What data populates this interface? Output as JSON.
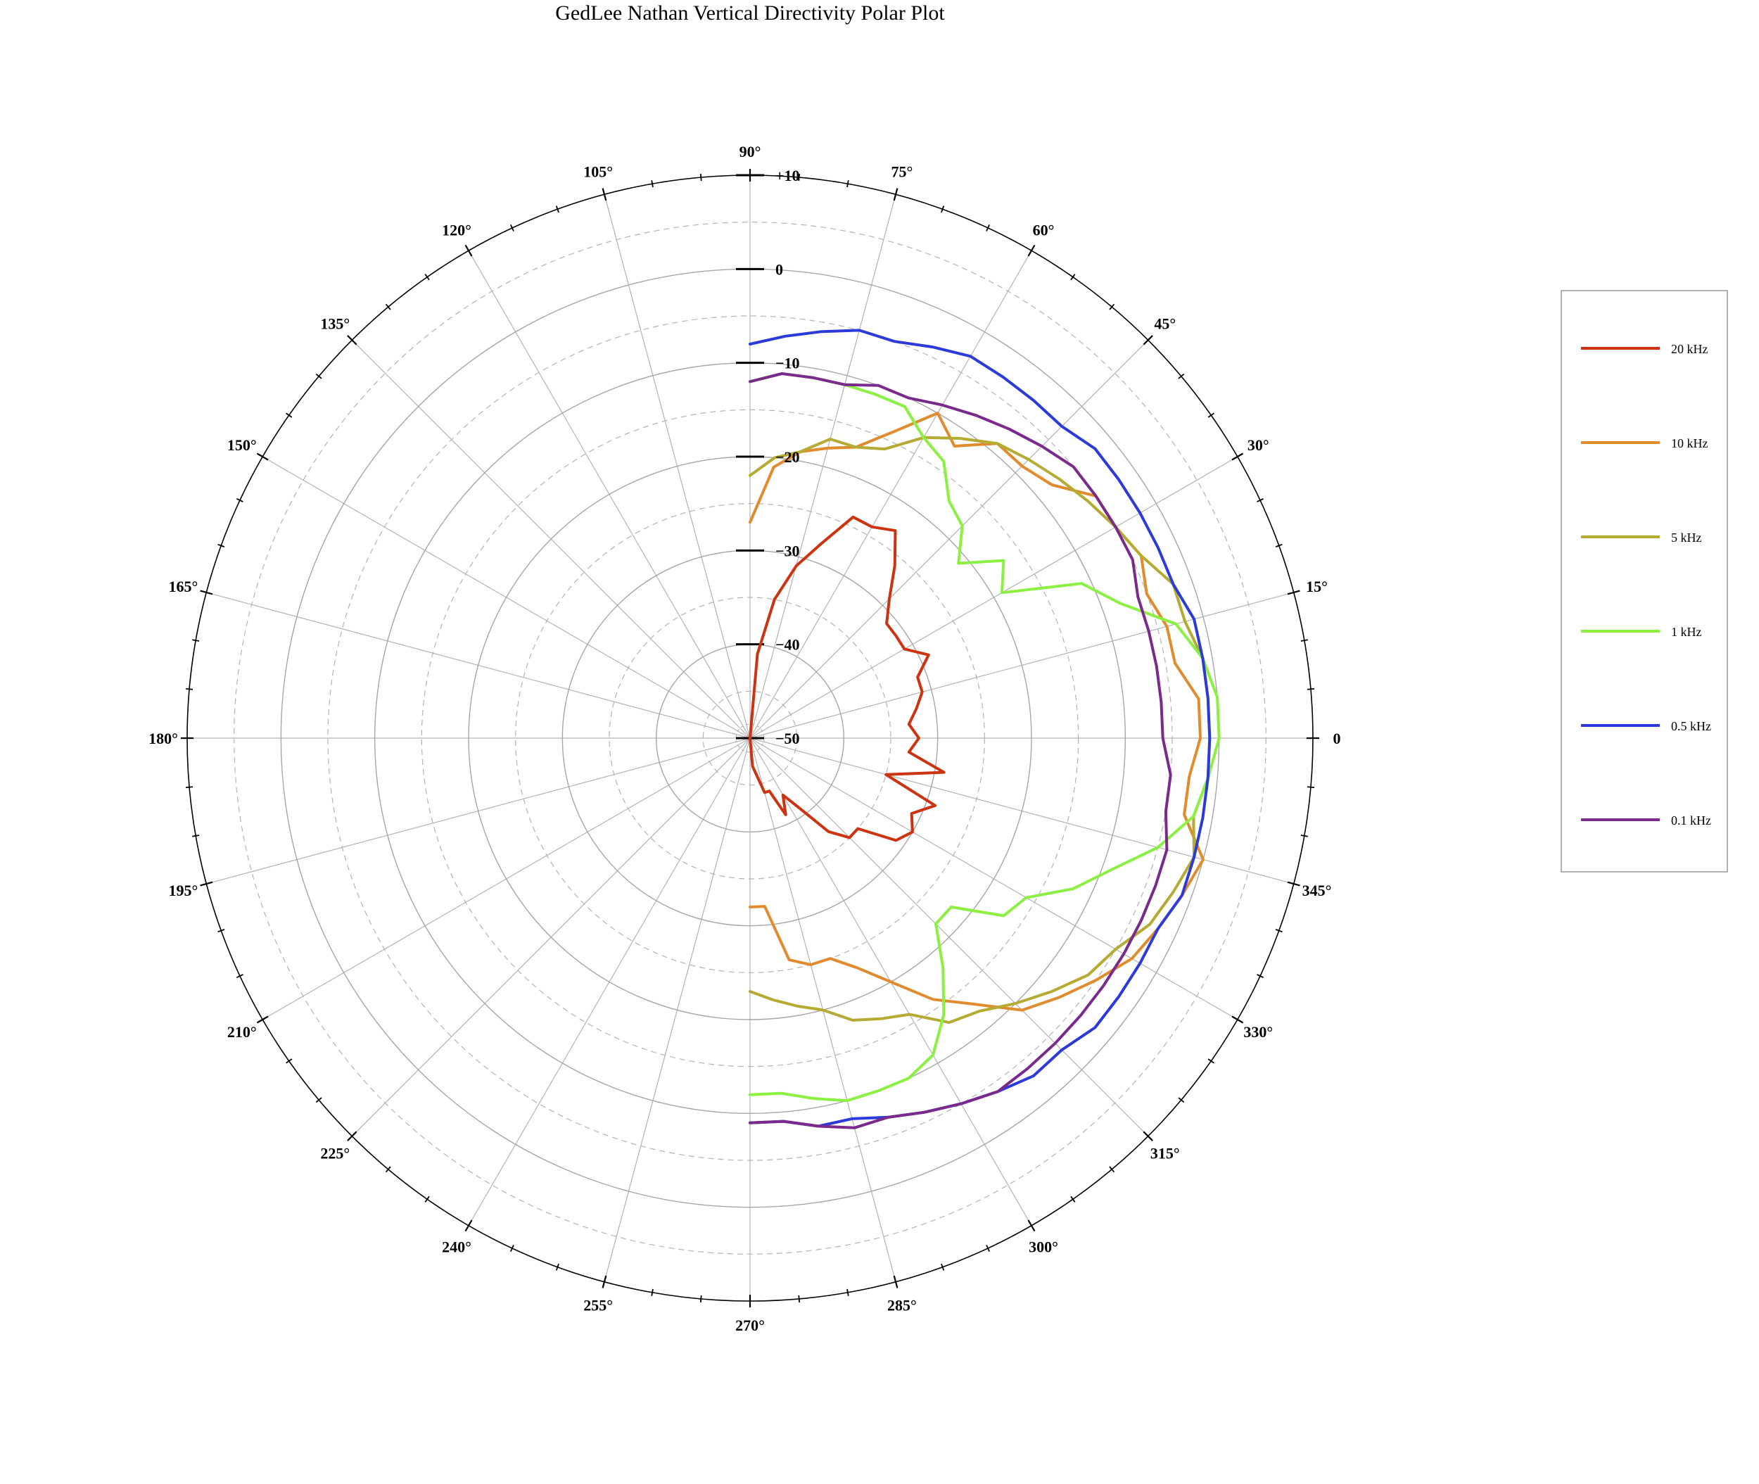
{
  "chart_data": {
    "type": "polar-line",
    "title": "GedLee Nathan Vertical Directivity Polar Plot",
    "radial_range": [
      -50,
      10
    ],
    "radial_ticks": [
      {
        "value": 10,
        "label": "+10"
      },
      {
        "value": 0,
        "label": "0"
      },
      {
        "value": -10,
        "label": "−10"
      },
      {
        "value": -20,
        "label": "−20"
      },
      {
        "value": -30,
        "label": "−30"
      },
      {
        "value": -40,
        "label": "−40"
      },
      {
        "value": -50,
        "label": "−50"
      }
    ],
    "minor_radial_rings": [
      5,
      -5,
      -15,
      -25,
      -35,
      -45
    ],
    "angle_labels": [
      {
        "angle": 0,
        "label": "0"
      },
      {
        "angle": 15,
        "label": "15°"
      },
      {
        "angle": 30,
        "label": "30°"
      },
      {
        "angle": 45,
        "label": "45°"
      },
      {
        "angle": 60,
        "label": "60°"
      },
      {
        "angle": 75,
        "label": "75°"
      },
      {
        "angle": 90,
        "label": "90°"
      },
      {
        "angle": 105,
        "label": "105°"
      },
      {
        "angle": 120,
        "label": "120°"
      },
      {
        "angle": 135,
        "label": "135°"
      },
      {
        "angle": 150,
        "label": "150°"
      },
      {
        "angle": 165,
        "label": "165°"
      },
      {
        "angle": 180,
        "label": "180°"
      },
      {
        "angle": 195,
        "label": "195°"
      },
      {
        "angle": 210,
        "label": "210°"
      },
      {
        "angle": 225,
        "label": "225°"
      },
      {
        "angle": 240,
        "label": "240°"
      },
      {
        "angle": 255,
        "label": "255°"
      },
      {
        "angle": 270,
        "label": "270°"
      },
      {
        "angle": 285,
        "label": "285°"
      },
      {
        "angle": 300,
        "label": "300°"
      },
      {
        "angle": 315,
        "label": "315°"
      },
      {
        "angle": 330,
        "label": "330°"
      },
      {
        "angle": 345,
        "label": "345°"
      }
    ],
    "grid": true,
    "legend_position": "right",
    "series": [
      {
        "name": "20 kHz",
        "color": "#cc3311",
        "points": [
          [
            270,
            -50
          ],
          [
            275,
            -47
          ],
          [
            280,
            -46
          ],
          [
            285,
            -44
          ],
          [
            290,
            -44
          ],
          [
            295,
            -41
          ],
          [
            300,
            -43
          ],
          [
            305,
            -41
          ],
          [
            310,
            -37
          ],
          [
            315,
            -35
          ],
          [
            320,
            -35
          ],
          [
            325,
            -31
          ],
          [
            330,
            -30
          ],
          [
            335,
            -31
          ],
          [
            340,
            -29
          ],
          [
            345,
            -35
          ],
          [
            350,
            -29
          ],
          [
            355,
            -33
          ],
          [
            0,
            -32
          ],
          [
            5,
            -33
          ],
          [
            10,
            -32
          ],
          [
            15,
            -31
          ],
          [
            20,
            -31
          ],
          [
            25,
            -29
          ],
          [
            30,
            -31
          ],
          [
            35,
            -31
          ],
          [
            40,
            -31
          ],
          [
            45,
            -29
          ],
          [
            50,
            -26
          ],
          [
            55,
            -23
          ],
          [
            60,
            -24
          ],
          [
            65,
            -24
          ],
          [
            70,
            -28
          ],
          [
            75,
            -31
          ],
          [
            80,
            -35
          ],
          [
            85,
            -41
          ],
          [
            90,
            -50
          ]
        ]
      },
      {
        "name": "10 kHz",
        "color": "#e08c2e",
        "points": [
          [
            270,
            -32
          ],
          [
            275,
            -32
          ],
          [
            280,
            -26
          ],
          [
            285,
            -25
          ],
          [
            290,
            -25
          ],
          [
            295,
            -23
          ],
          [
            300,
            -20
          ],
          [
            305,
            -16
          ],
          [
            310,
            -13
          ],
          [
            315,
            -9
          ],
          [
            320,
            -7
          ],
          [
            325,
            -5
          ],
          [
            330,
            -3
          ],
          [
            335,
            -2
          ],
          [
            340,
            -1
          ],
          [
            345,
            0
          ],
          [
            350,
            -3
          ],
          [
            355,
            -3
          ],
          [
            0,
            -2
          ],
          [
            5,
            -2
          ],
          [
            10,
            -4
          ],
          [
            15,
            -4
          ],
          [
            20,
            -5
          ],
          [
            25,
            -4
          ],
          [
            30,
            -5
          ],
          [
            35,
            -5
          ],
          [
            40,
            -8
          ],
          [
            45,
            -9
          ],
          [
            50,
            -9
          ],
          [
            55,
            -12
          ],
          [
            60,
            -10
          ],
          [
            65,
            -14
          ],
          [
            70,
            -17
          ],
          [
            75,
            -18
          ],
          [
            80,
            -19
          ],
          [
            85,
            -21
          ],
          [
            90,
            -27
          ]
        ]
      },
      {
        "name": "5 kHz",
        "color": "#b5ab32",
        "points": [
          [
            270,
            -23
          ],
          [
            275,
            -22
          ],
          [
            280,
            -21
          ],
          [
            285,
            -20
          ],
          [
            290,
            -18
          ],
          [
            295,
            -17
          ],
          [
            300,
            -16
          ],
          [
            305,
            -13
          ],
          [
            310,
            -12
          ],
          [
            315,
            -10
          ],
          [
            320,
            -8
          ],
          [
            325,
            -6
          ],
          [
            330,
            -5
          ],
          [
            335,
            -3
          ],
          [
            340,
            -2
          ],
          [
            345,
            -1
          ],
          [
            350,
            -2
          ],
          [
            355,
            -1
          ],
          [
            0,
            -1
          ],
          [
            5,
            -1
          ],
          [
            10,
            -1
          ],
          [
            15,
            -2
          ],
          [
            20,
            -2
          ],
          [
            25,
            -4
          ],
          [
            30,
            -5
          ],
          [
            35,
            -6
          ],
          [
            40,
            -7
          ],
          [
            45,
            -8
          ],
          [
            50,
            -9
          ],
          [
            55,
            -11
          ],
          [
            60,
            -13
          ],
          [
            65,
            -16
          ],
          [
            70,
            -17
          ],
          [
            75,
            -17
          ],
          [
            80,
            -19
          ],
          [
            85,
            -20
          ],
          [
            90,
            -22
          ]
        ]
      },
      {
        "name": "1 kHz",
        "color": "#8cf042",
        "points": [
          [
            270,
            -12
          ],
          [
            275,
            -12
          ],
          [
            280,
            -11
          ],
          [
            285,
            -10
          ],
          [
            290,
            -10
          ],
          [
            295,
            -10
          ],
          [
            300,
            -11
          ],
          [
            305,
            -14
          ],
          [
            310,
            -18
          ],
          [
            315,
            -22
          ],
          [
            320,
            -22
          ],
          [
            325,
            -17
          ],
          [
            330,
            -16
          ],
          [
            335,
            -12
          ],
          [
            340,
            -9
          ],
          [
            345,
            -5
          ],
          [
            350,
            -2
          ],
          [
            355,
            -1
          ],
          [
            0,
            0
          ],
          [
            5,
            0
          ],
          [
            10,
            -1
          ],
          [
            15,
            -3
          ],
          [
            20,
            -8
          ],
          [
            25,
            -11
          ],
          [
            30,
            -19
          ],
          [
            35,
            -17
          ],
          [
            40,
            -21
          ],
          [
            45,
            -18
          ],
          [
            50,
            -17
          ],
          [
            55,
            -14
          ],
          [
            60,
            -13
          ],
          [
            65,
            -11
          ],
          [
            70,
            -11
          ],
          [
            75,
            -11
          ],
          [
            80,
            -11
          ],
          [
            85,
            -11
          ],
          [
            90,
            -12
          ]
        ]
      },
      {
        "name": "0.5 kHz",
        "color": "#2b3ad8",
        "points": [
          [
            270,
            -9
          ],
          [
            275,
            -9
          ],
          [
            280,
            -8
          ],
          [
            285,
            -8
          ],
          [
            290,
            -7
          ],
          [
            295,
            -6
          ],
          [
            300,
            -5
          ],
          [
            305,
            -4
          ],
          [
            310,
            -3
          ],
          [
            315,
            -3
          ],
          [
            320,
            -2
          ],
          [
            325,
            -2
          ],
          [
            330,
            -2
          ],
          [
            335,
            -2
          ],
          [
            340,
            -1
          ],
          [
            345,
            -1
          ],
          [
            350,
            -1
          ],
          [
            355,
            -1
          ],
          [
            0,
            -1
          ],
          [
            5,
            -1
          ],
          [
            10,
            -1
          ],
          [
            15,
            -1
          ],
          [
            20,
            -2
          ],
          [
            25,
            -2
          ],
          [
            30,
            -2
          ],
          [
            35,
            -2
          ],
          [
            40,
            -2
          ],
          [
            45,
            -3
          ],
          [
            50,
            -3
          ],
          [
            55,
            -3
          ],
          [
            60,
            -3
          ],
          [
            65,
            -4
          ],
          [
            70,
            -5
          ],
          [
            75,
            -5
          ],
          [
            80,
            -6
          ],
          [
            85,
            -7
          ],
          [
            90,
            -8
          ]
        ]
      },
      {
        "name": "0.1 kHz",
        "color": "#7a2a8c",
        "points": [
          [
            270,
            -9
          ],
          [
            275,
            -9
          ],
          [
            280,
            -8
          ],
          [
            285,
            -7
          ],
          [
            290,
            -7
          ],
          [
            295,
            -6
          ],
          [
            300,
            -5
          ],
          [
            305,
            -4
          ],
          [
            310,
            -4
          ],
          [
            315,
            -4
          ],
          [
            320,
            -4
          ],
          [
            325,
            -4
          ],
          [
            330,
            -4
          ],
          [
            335,
            -4
          ],
          [
            340,
            -4
          ],
          [
            345,
            -4
          ],
          [
            350,
            -5
          ],
          [
            355,
            -5
          ],
          [
            0,
            -6
          ],
          [
            5,
            -6
          ],
          [
            10,
            -6
          ],
          [
            15,
            -6
          ],
          [
            20,
            -6
          ],
          [
            25,
            -5
          ],
          [
            30,
            -5
          ],
          [
            35,
            -5
          ],
          [
            40,
            -5
          ],
          [
            45,
            -6
          ],
          [
            50,
            -7
          ],
          [
            55,
            -8
          ],
          [
            60,
            -9
          ],
          [
            65,
            -10
          ],
          [
            70,
            -10
          ],
          [
            75,
            -11
          ],
          [
            80,
            -11
          ],
          [
            85,
            -11
          ],
          [
            90,
            -12
          ]
        ]
      }
    ]
  }
}
